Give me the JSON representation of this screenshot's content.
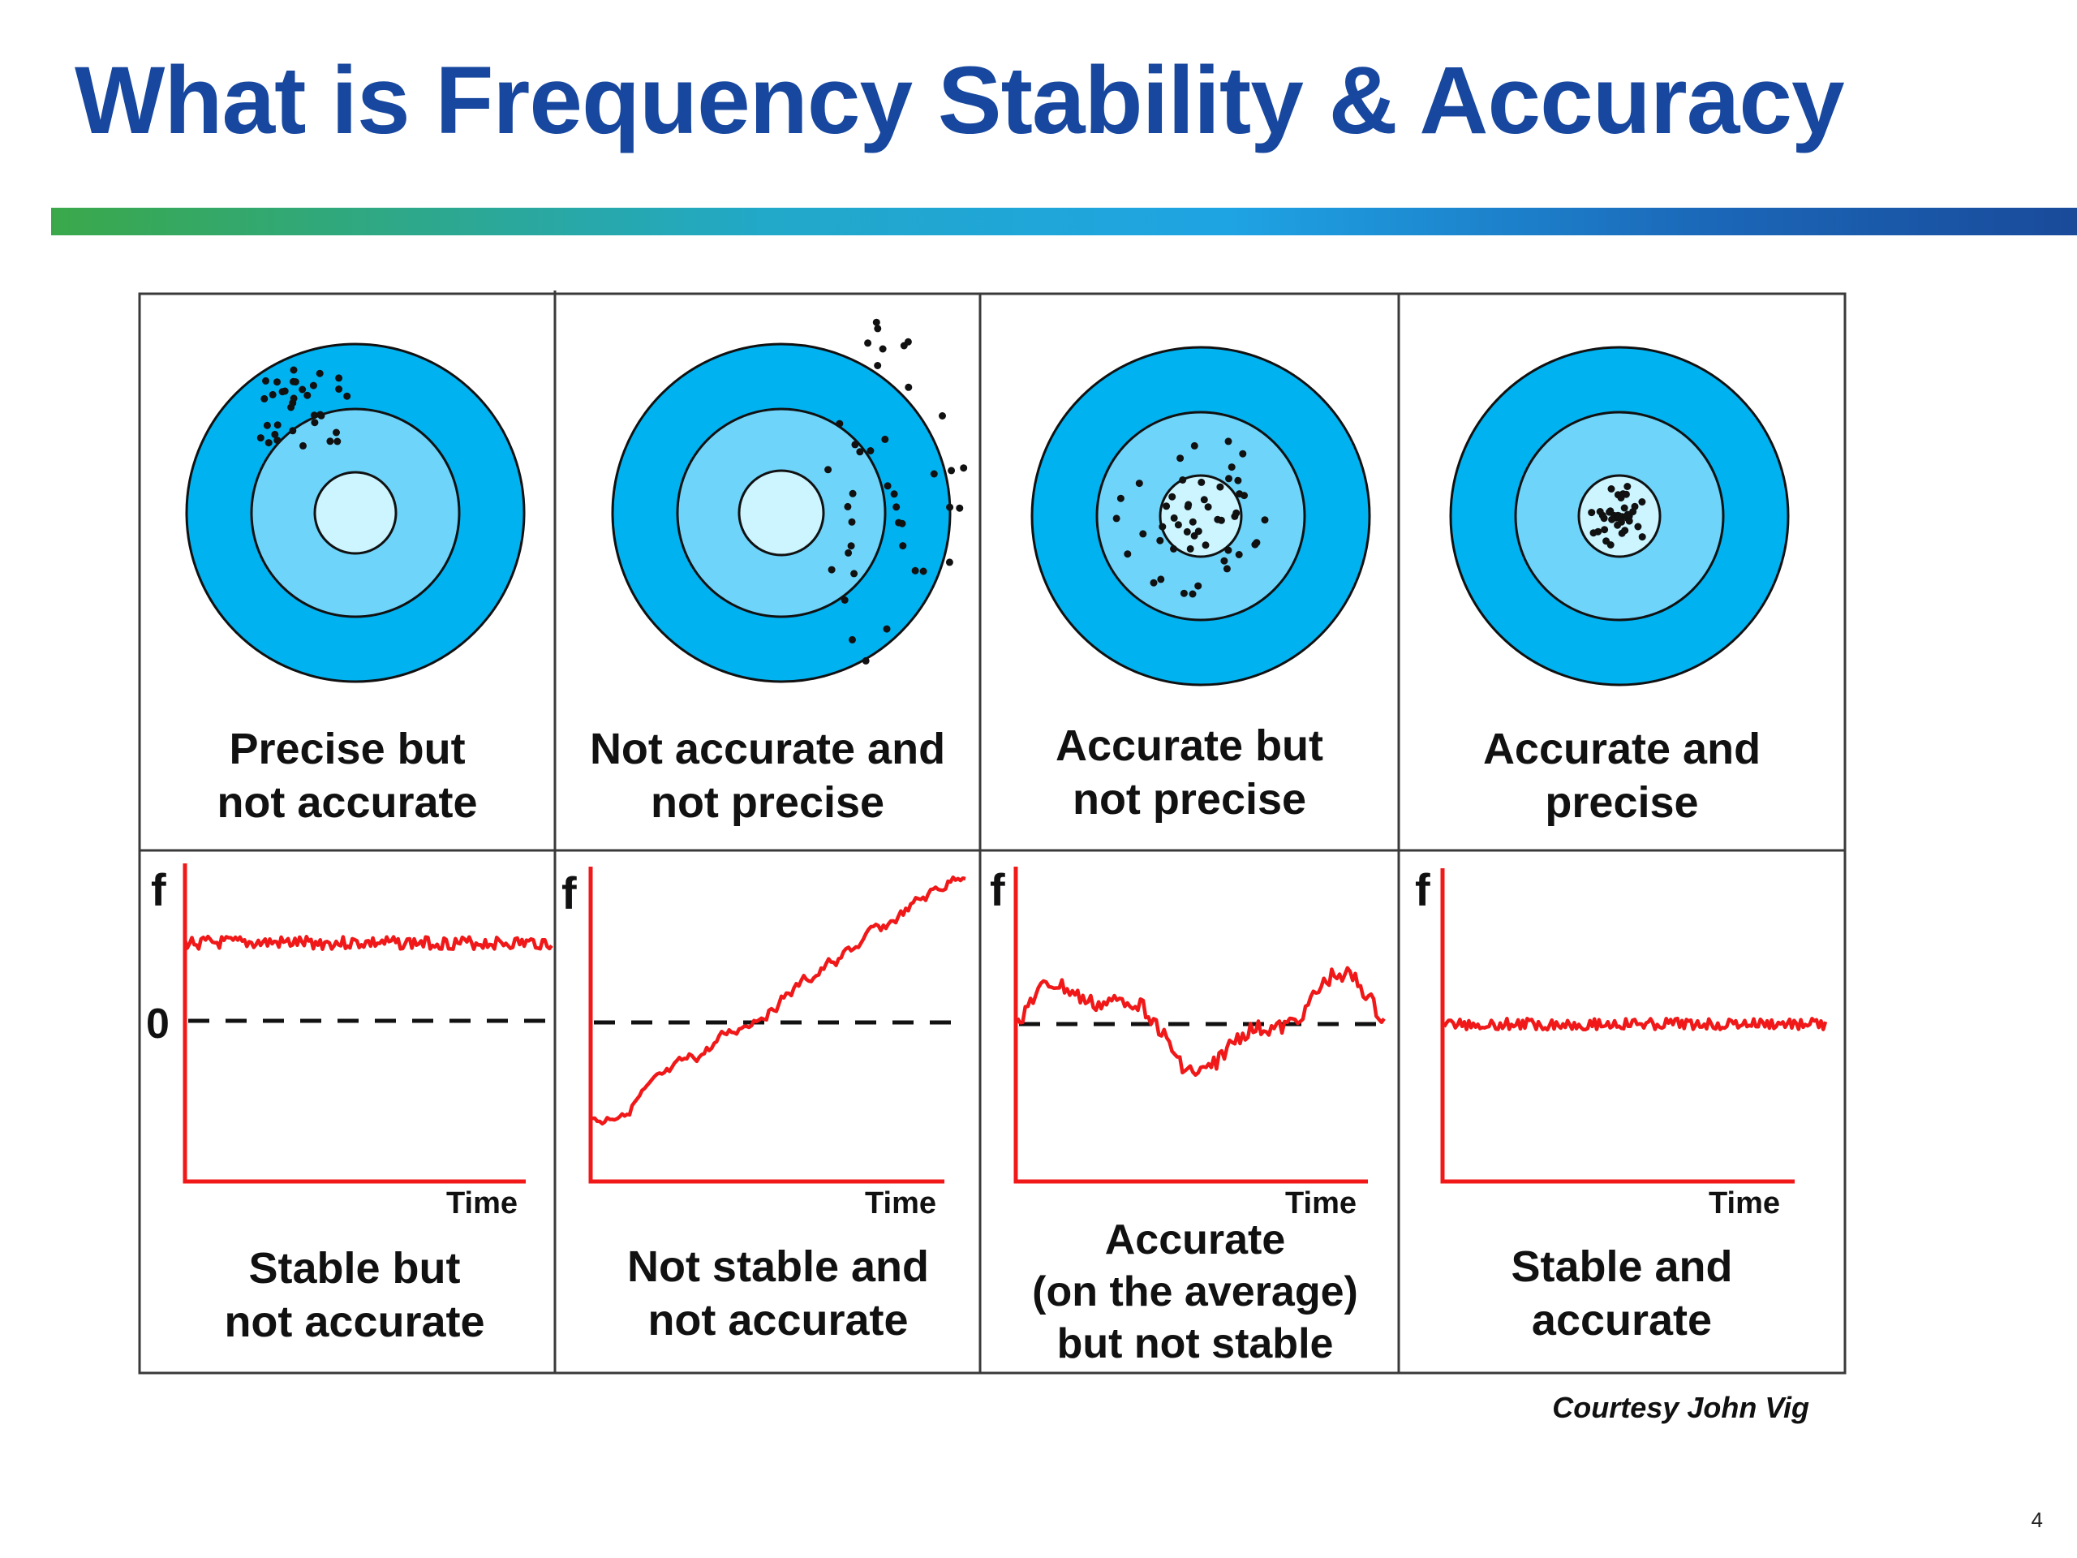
{
  "title": "What is Frequency Stability & Accuracy",
  "courtesy": "Courtesy John Vig",
  "page_number": "4",
  "colors": {
    "title": "#17479e",
    "ring_outer": "#00b2f0",
    "ring_middle": "#6fd4fa",
    "ring_inner": "#ccf5ff",
    "trace": "#f01818",
    "axis": "#f01818"
  },
  "targets": [
    {
      "label": "Precise but\nnot accurate"
    },
    {
      "label": "Not accurate and\nnot precise"
    },
    {
      "label": "Accurate but\nnot precise"
    },
    {
      "label": "Accurate and\nprecise"
    }
  ],
  "plots": [
    {
      "label": "Stable but\nnot accurate",
      "y_axis": "f",
      "x_axis": "Time",
      "zero": "0"
    },
    {
      "label": "Not stable and\nnot accurate",
      "y_axis": "f",
      "x_axis": "Time"
    },
    {
      "label": "Accurate\n(on the average)\nbut not stable",
      "y_axis": "f",
      "x_axis": "Time"
    },
    {
      "label": "Stable and\naccurate",
      "y_axis": "f",
      "x_axis": "Time"
    }
  ]
}
